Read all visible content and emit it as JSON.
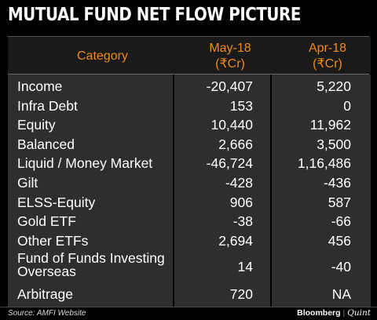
{
  "title": "MUTUAL FUND NET FLOW PICTURE",
  "header": {
    "category": "Category",
    "may_line1": "May-18",
    "may_line2": "(₹Cr)",
    "apr_line1": "Apr-18",
    "apr_line2": "(₹Cr)"
  },
  "chart_data": {
    "type": "table",
    "title": "MUTUAL FUND NET FLOW PICTURE",
    "columns": [
      "Category",
      "May-18 (₹Cr)",
      "Apr-18 (₹Cr)"
    ],
    "rows": [
      [
        "Income",
        "-20,407",
        "5,220"
      ],
      [
        "Infra Debt",
        "153",
        "0"
      ],
      [
        "Equity",
        "10,440",
        "11,962"
      ],
      [
        "Balanced",
        "2,666",
        "3,500"
      ],
      [
        "Liquid / Money Market",
        "-46,724",
        "1,16,486"
      ],
      [
        "Gilt",
        "-428",
        "-436"
      ],
      [
        "ELSS-Equity",
        "906",
        "587"
      ],
      [
        "Gold ETF",
        "-38",
        "-66"
      ],
      [
        "Other ETFs",
        "2,694",
        "456"
      ],
      [
        "Fund of Funds Investing Overseas",
        "14",
        "-40"
      ],
      [
        "Arbitrage",
        "720",
        "NA"
      ]
    ]
  },
  "rows": [
    {
      "cat": "Income",
      "may": "-20,407",
      "apr": "5,220"
    },
    {
      "cat": "Infra Debt",
      "may": "153",
      "apr": "0"
    },
    {
      "cat": "Equity",
      "may": "10,440",
      "apr": "11,962"
    },
    {
      "cat": "Balanced",
      "may": "2,666",
      "apr": "3,500"
    },
    {
      "cat": "Liquid / Money Market",
      "may": "-46,724",
      "apr": "1,16,486"
    },
    {
      "cat": "Gilt",
      "may": "-428",
      "apr": "-436"
    },
    {
      "cat": "ELSS-Equity",
      "may": "906",
      "apr": "587"
    },
    {
      "cat": "Gold ETF",
      "may": "-38",
      "apr": "-66"
    },
    {
      "cat": "Other ETFs",
      "may": "2,694",
      "apr": "456"
    },
    {
      "cat_line1": "Fund of Funds Investing",
      "cat_line2": "Overseas",
      "may": "14",
      "apr": "-40"
    },
    {
      "cat": "Arbitrage",
      "may": "720",
      "apr": "NA"
    }
  ],
  "footer": {
    "source": "Source: AMFI Website",
    "brand_left": "Bloomberg",
    "brand_sep": "|",
    "brand_right": "Quint"
  }
}
